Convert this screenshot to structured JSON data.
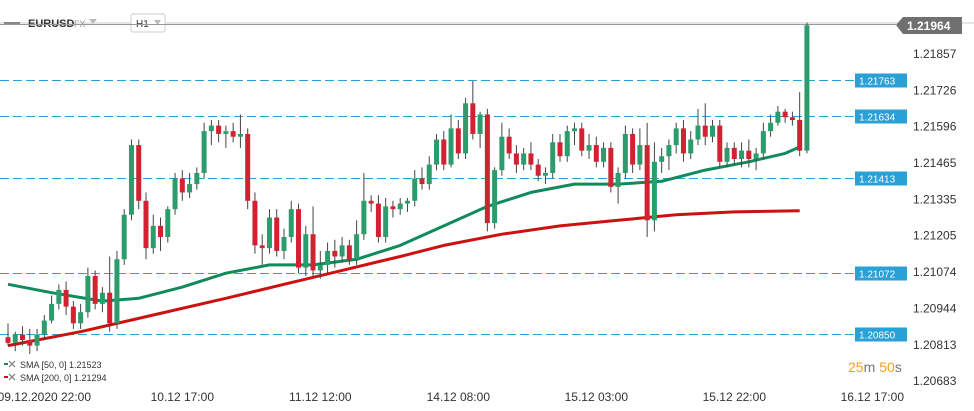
{
  "header": {
    "symbol": "EURUSD",
    "exchange": "FX",
    "timeframe": "H1"
  },
  "current_price": "1.21964",
  "countdown": {
    "minutes": "25",
    "m": "m",
    "seconds": "50",
    "s": "s"
  },
  "legend": [
    {
      "label": "SMA [50, 0] 1.21523",
      "color": "#118a5c"
    },
    {
      "label": "SMA [200, 0] 1.21294",
      "color": "#cc1111"
    }
  ],
  "colors": {
    "up": "#2d9c6c",
    "down": "#d12232",
    "sma50": "#118a5c",
    "sma200": "#cc1111",
    "level": "#29a0d6"
  },
  "chart_data": {
    "type": "candlestick",
    "title": "",
    "xlabel": "",
    "ylabel": "",
    "ylim": [
      1.2068,
      1.2198
    ],
    "y_ticks": [
      "1.21857",
      "1.21726",
      "1.21596",
      "1.21465",
      "1.21335",
      "1.21205",
      "1.21074",
      "1.20944",
      "1.20813",
      "1.20683"
    ],
    "x_ticks": [
      {
        "label": "09.12.2020  22:00",
        "index": 5
      },
      {
        "label": "10.12  17:00",
        "index": 24
      },
      {
        "label": "11.12  12:00",
        "index": 43
      },
      {
        "label": "14.12  08:00",
        "index": 62
      },
      {
        "label": "15.12  03:00",
        "index": 81
      },
      {
        "label": "15.12  22:00",
        "index": 100
      },
      {
        "label": "16.12  17:00",
        "index": 119
      }
    ],
    "horizontal_levels": [
      "1.21763",
      "1.21634",
      "1.21413",
      "1.21072",
      "1.20850"
    ],
    "last_price": 1.21964,
    "candles": [
      [
        1.2084,
        1.2089,
        1.2081,
        1.2082
      ],
      [
        1.2082,
        1.2086,
        1.2079,
        1.2085
      ],
      [
        1.2085,
        1.2088,
        1.2081,
        1.2083
      ],
      [
        1.2083,
        1.2087,
        1.2078,
        1.2081
      ],
      [
        1.2081,
        1.2087,
        1.2079,
        1.2085
      ],
      [
        1.2085,
        1.2092,
        1.2083,
        1.209
      ],
      [
        1.209,
        1.2099,
        1.2089,
        1.2096
      ],
      [
        1.2096,
        1.2103,
        1.2094,
        1.2101
      ],
      [
        1.2101,
        1.2104,
        1.2092,
        1.2095
      ],
      [
        1.2095,
        1.2097,
        1.2087,
        1.2089
      ],
      [
        1.2089,
        1.2096,
        1.2087,
        1.2093
      ],
      [
        1.2093,
        1.2109,
        1.2091,
        1.2106
      ],
      [
        1.2106,
        1.2108,
        1.2094,
        1.2096
      ],
      [
        1.2096,
        1.2102,
        1.2093,
        1.21
      ],
      [
        1.21,
        1.2113,
        1.2086,
        1.2089
      ],
      [
        1.2089,
        1.2115,
        1.2087,
        1.2112
      ],
      [
        1.2112,
        1.213,
        1.211,
        1.2128
      ],
      [
        1.2128,
        1.2155,
        1.2126,
        1.2153
      ],
      [
        1.2153,
        1.2155,
        1.213,
        1.2133
      ],
      [
        1.2133,
        1.2136,
        1.2112,
        1.2116
      ],
      [
        1.2116,
        1.2128,
        1.2114,
        1.2124
      ],
      [
        1.2124,
        1.2127,
        1.2115,
        1.212
      ],
      [
        1.212,
        1.2131,
        1.2118,
        1.213
      ],
      [
        1.213,
        1.2143,
        1.2128,
        1.2141
      ],
      [
        1.2141,
        1.2144,
        1.2133,
        1.2136
      ],
      [
        1.2136,
        1.2143,
        1.2134,
        1.2139
      ],
      [
        1.2139,
        1.2145,
        1.2137,
        1.2143
      ],
      [
        1.2143,
        1.2161,
        1.2141,
        1.2158
      ],
      [
        1.2158,
        1.2162,
        1.2153,
        1.216
      ],
      [
        1.216,
        1.2162,
        1.2154,
        1.2157
      ],
      [
        1.2157,
        1.216,
        1.2152,
        1.2158
      ],
      [
        1.2158,
        1.2161,
        1.2154,
        1.2156
      ],
      [
        1.2156,
        1.2164,
        1.2152,
        1.2157
      ],
      [
        1.2157,
        1.2159,
        1.213,
        1.2133
      ],
      [
        1.2133,
        1.2136,
        1.2114,
        1.2117
      ],
      [
        1.2117,
        1.2121,
        1.211,
        1.2116
      ],
      [
        1.2116,
        1.213,
        1.2114,
        1.2127
      ],
      [
        1.2127,
        1.213,
        1.2113,
        1.2115
      ],
      [
        1.2115,
        1.2123,
        1.2112,
        1.212
      ],
      [
        1.212,
        1.2133,
        1.2118,
        1.213
      ],
      [
        1.213,
        1.2132,
        1.2107,
        1.2109
      ],
      [
        1.2109,
        1.2124,
        1.2106,
        1.2121
      ],
      [
        1.2121,
        1.2131,
        1.2106,
        1.2108
      ],
      [
        1.2108,
        1.2115,
        1.2105,
        1.211
      ],
      [
        1.211,
        1.2118,
        1.2107,
        1.2115
      ],
      [
        1.2115,
        1.2119,
        1.2109,
        1.2113
      ],
      [
        1.2113,
        1.212,
        1.2111,
        1.2117
      ],
      [
        1.2117,
        1.2119,
        1.211,
        1.2112
      ],
      [
        1.2112,
        1.2126,
        1.211,
        1.2121
      ],
      [
        1.2121,
        1.2143,
        1.2119,
        1.2133
      ],
      [
        1.2133,
        1.2135,
        1.2129,
        1.2132
      ],
      [
        1.2132,
        1.2135,
        1.2118,
        1.212
      ],
      [
        1.212,
        1.2134,
        1.2118,
        1.2131
      ],
      [
        1.2131,
        1.2133,
        1.2127,
        1.213
      ],
      [
        1.213,
        1.2134,
        1.2128,
        1.2132
      ],
      [
        1.2132,
        1.2134,
        1.2129,
        1.2133
      ],
      [
        1.2133,
        1.2144,
        1.2131,
        1.2141
      ],
      [
        1.2141,
        1.2145,
        1.2137,
        1.2139
      ],
      [
        1.2139,
        1.2149,
        1.2137,
        1.2146
      ],
      [
        1.2146,
        1.2157,
        1.2144,
        1.2155
      ],
      [
        1.2155,
        1.2158,
        1.2144,
        1.2146
      ],
      [
        1.2146,
        1.2164,
        1.2145,
        1.2159
      ],
      [
        1.2159,
        1.2162,
        1.2148,
        1.215
      ],
      [
        1.215,
        1.217,
        1.2148,
        1.2168
      ],
      [
        1.2168,
        1.2176,
        1.2155,
        1.2157
      ],
      [
        1.2157,
        1.2165,
        1.2152,
        1.2164
      ],
      [
        1.2164,
        1.2166,
        1.2122,
        1.2125
      ],
      [
        1.2125,
        1.2145,
        1.2123,
        1.2144
      ],
      [
        1.2144,
        1.2161,
        1.2142,
        1.2156
      ],
      [
        1.2156,
        1.2159,
        1.2148,
        1.215
      ],
      [
        1.215,
        1.2153,
        1.2143,
        1.2146
      ],
      [
        1.2146,
        1.2152,
        1.2144,
        1.215
      ],
      [
        1.215,
        1.2154,
        1.2144,
        1.2146
      ],
      [
        1.2146,
        1.2148,
        1.214,
        1.2142
      ],
      [
        1.2142,
        1.2145,
        1.2139,
        1.2143
      ],
      [
        1.2143,
        1.2157,
        1.2141,
        1.2154
      ],
      [
        1.2154,
        1.2157,
        1.2147,
        1.2149
      ],
      [
        1.2149,
        1.216,
        1.2147,
        1.2158
      ],
      [
        1.2158,
        1.2161,
        1.2153,
        1.2159
      ],
      [
        1.2159,
        1.2161,
        1.2149,
        1.2151
      ],
      [
        1.2151,
        1.2157,
        1.2148,
        1.2153
      ],
      [
        1.2153,
        1.2156,
        1.2145,
        1.2147
      ],
      [
        1.2147,
        1.2154,
        1.2145,
        1.2152
      ],
      [
        1.2152,
        1.2154,
        1.2136,
        1.2138
      ],
      [
        1.2138,
        1.2145,
        1.2132,
        1.2143
      ],
      [
        1.2143,
        1.216,
        1.2141,
        1.2157
      ],
      [
        1.2157,
        1.2159,
        1.2143,
        1.2146
      ],
      [
        1.2146,
        1.2159,
        1.2144,
        1.2153
      ],
      [
        1.2153,
        1.2161,
        1.212,
        1.2126
      ],
      [
        1.2126,
        1.2154,
        1.2122,
        1.2147
      ],
      [
        1.2147,
        1.2152,
        1.2143,
        1.2149
      ],
      [
        1.2149,
        1.2155,
        1.2144,
        1.2153
      ],
      [
        1.2153,
        1.2161,
        1.215,
        1.2159
      ],
      [
        1.2159,
        1.2162,
        1.2147,
        1.215
      ],
      [
        1.215,
        1.2158,
        1.2148,
        1.2155
      ],
      [
        1.2155,
        1.2166,
        1.2153,
        1.216
      ],
      [
        1.216,
        1.2168,
        1.2153,
        1.2156
      ],
      [
        1.2156,
        1.2162,
        1.2154,
        1.216
      ],
      [
        1.216,
        1.2162,
        1.2145,
        1.2147
      ],
      [
        1.2147,
        1.2154,
        1.2145,
        1.2152
      ],
      [
        1.2152,
        1.2154,
        1.2146,
        1.2148
      ],
      [
        1.2148,
        1.2154,
        1.2145,
        1.2151
      ],
      [
        1.2151,
        1.2155,
        1.2145,
        1.2148
      ],
      [
        1.2148,
        1.2152,
        1.2144,
        1.215
      ],
      [
        1.215,
        1.2161,
        1.2148,
        1.2158
      ],
      [
        1.2158,
        1.2164,
        1.2156,
        1.2161
      ],
      [
        1.2161,
        1.2167,
        1.216,
        1.2165
      ],
      [
        1.2165,
        1.2166,
        1.2161,
        1.2163
      ],
      [
        1.2163,
        1.2165,
        1.216,
        1.2162
      ],
      [
        1.2162,
        1.2172,
        1.2149,
        1.2151
      ],
      [
        1.2151,
        1.2197,
        1.215,
        1.2196
      ]
    ],
    "series": [
      {
        "name": "SMA [50, 0] 1.21523",
        "color": "#118a5c",
        "points": [
          [
            0,
            1.2103
          ],
          [
            6,
            1.21
          ],
          [
            13,
            1.2097
          ],
          [
            18,
            1.2098
          ],
          [
            24,
            1.2102
          ],
          [
            30,
            1.2107
          ],
          [
            36,
            1.211
          ],
          [
            42,
            1.211
          ],
          [
            48,
            1.2112
          ],
          [
            54,
            1.2117
          ],
          [
            60,
            1.2124
          ],
          [
            66,
            1.2131
          ],
          [
            72,
            1.2136
          ],
          [
            78,
            1.2139
          ],
          [
            84,
            1.2139
          ],
          [
            90,
            1.214
          ],
          [
            96,
            1.2144
          ],
          [
            102,
            1.2147
          ],
          [
            107,
            1.215
          ],
          [
            109,
            1.21523
          ]
        ]
      },
      {
        "name": "SMA [200, 0] 1.21294",
        "color": "#cc1111",
        "points": [
          [
            0,
            1.2081
          ],
          [
            10,
            1.2086
          ],
          [
            20,
            1.2092
          ],
          [
            30,
            1.2098
          ],
          [
            38,
            1.2103
          ],
          [
            46,
            1.2108
          ],
          [
            54,
            1.2113
          ],
          [
            60,
            1.2117
          ],
          [
            68,
            1.2121
          ],
          [
            76,
            1.2124
          ],
          [
            84,
            1.2126
          ],
          [
            92,
            1.2128
          ],
          [
            100,
            1.2129
          ],
          [
            109,
            1.21294
          ]
        ]
      }
    ]
  }
}
